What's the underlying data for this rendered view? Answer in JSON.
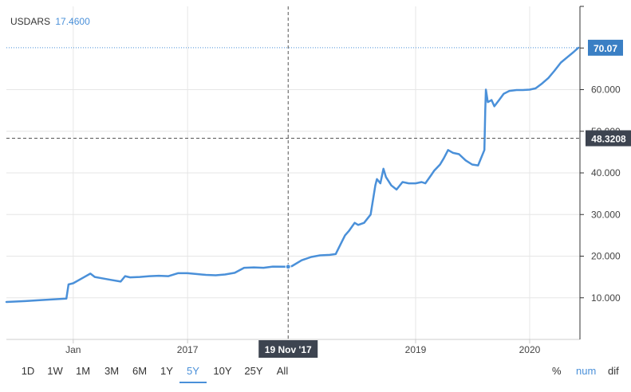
{
  "header": {
    "symbol": "USDARS",
    "hover_value": "17.4600"
  },
  "ranges": [
    {
      "label": "1D"
    },
    {
      "label": "1W"
    },
    {
      "label": "1M"
    },
    {
      "label": "3M"
    },
    {
      "label": "6M"
    },
    {
      "label": "1Y"
    },
    {
      "label": "5Y",
      "active": true
    },
    {
      "label": "10Y"
    },
    {
      "label": "25Y"
    },
    {
      "label": "All"
    }
  ],
  "modes": [
    {
      "label": "%"
    },
    {
      "label": "num",
      "active": true
    },
    {
      "label": "dif"
    }
  ],
  "crosshair": {
    "date_label": "19 Nov '17",
    "price_label": "48.3208"
  },
  "last_price_label": "70.07",
  "colors": {
    "line": "#4a90d9",
    "accent": "#4a90d9",
    "badge_dark": "#3d4450",
    "badge_blue": "#3a7fc4"
  },
  "chart_data": {
    "type": "line",
    "title": "USDARS",
    "xlim": [
      "2015-06-01",
      "2020-06-10"
    ],
    "ylim": [
      0,
      80
    ],
    "x_tick_labels": [
      {
        "date": "2016-01-01",
        "label": "Jan"
      },
      {
        "date": "2017-01-01",
        "label": "2017"
      },
      {
        "date": "2019-01-01",
        "label": "2019"
      },
      {
        "date": "2020-01-01",
        "label": "2020"
      }
    ],
    "y_ticks": [
      10,
      20,
      30,
      40,
      50,
      60
    ],
    "y_tick_labels": [
      "10.000",
      "20.000",
      "30.000",
      "40.000",
      "50.000",
      "60.000"
    ],
    "last_value": 70.07,
    "crosshair_y": 48.3208,
    "crosshair_x": "2017-11-19",
    "series": [
      {
        "points": [
          [
            "2015-06-01",
            9.0
          ],
          [
            "2015-08-01",
            9.2
          ],
          [
            "2015-10-01",
            9.5
          ],
          [
            "2015-12-10",
            9.8
          ],
          [
            "2015-12-17",
            13.2
          ],
          [
            "2016-01-01",
            13.5
          ],
          [
            "2016-02-01",
            14.8
          ],
          [
            "2016-02-25",
            15.8
          ],
          [
            "2016-03-10",
            15.0
          ],
          [
            "2016-04-01",
            14.7
          ],
          [
            "2016-05-01",
            14.3
          ],
          [
            "2016-06-01",
            13.9
          ],
          [
            "2016-06-15",
            15.2
          ],
          [
            "2016-07-01",
            14.9
          ],
          [
            "2016-08-01",
            15.0
          ],
          [
            "2016-09-01",
            15.2
          ],
          [
            "2016-10-01",
            15.3
          ],
          [
            "2016-11-01",
            15.2
          ],
          [
            "2016-12-01",
            15.9
          ],
          [
            "2017-01-01",
            15.9
          ],
          [
            "2017-02-01",
            15.7
          ],
          [
            "2017-03-01",
            15.5
          ],
          [
            "2017-04-01",
            15.4
          ],
          [
            "2017-05-01",
            15.6
          ],
          [
            "2017-06-01",
            16.0
          ],
          [
            "2017-07-01",
            17.2
          ],
          [
            "2017-08-01",
            17.3
          ],
          [
            "2017-09-01",
            17.2
          ],
          [
            "2017-10-01",
            17.5
          ],
          [
            "2017-11-19",
            17.46
          ],
          [
            "2017-12-01",
            17.6
          ],
          [
            "2018-01-01",
            19.0
          ],
          [
            "2018-02-01",
            19.8
          ],
          [
            "2018-03-01",
            20.2
          ],
          [
            "2018-04-01",
            20.3
          ],
          [
            "2018-04-20",
            20.5
          ],
          [
            "2018-05-10",
            23.5
          ],
          [
            "2018-05-20",
            25.0
          ],
          [
            "2018-06-01",
            26.0
          ],
          [
            "2018-06-20",
            28.0
          ],
          [
            "2018-07-01",
            27.5
          ],
          [
            "2018-07-20",
            28.0
          ],
          [
            "2018-08-10",
            30.0
          ],
          [
            "2018-08-25",
            37.0
          ],
          [
            "2018-08-30",
            38.5
          ],
          [
            "2018-09-10",
            37.5
          ],
          [
            "2018-09-20",
            41.0
          ],
          [
            "2018-09-28",
            39.0
          ],
          [
            "2018-10-15",
            37.0
          ],
          [
            "2018-11-01",
            36.0
          ],
          [
            "2018-11-20",
            37.8
          ],
          [
            "2018-12-10",
            37.5
          ],
          [
            "2019-01-01",
            37.5
          ],
          [
            "2019-01-20",
            37.8
          ],
          [
            "2019-02-01",
            37.5
          ],
          [
            "2019-02-20",
            39.5
          ],
          [
            "2019-03-01",
            40.5
          ],
          [
            "2019-03-20",
            42.0
          ],
          [
            "2019-04-01",
            43.5
          ],
          [
            "2019-04-15",
            45.5
          ],
          [
            "2019-05-01",
            44.8
          ],
          [
            "2019-05-20",
            44.5
          ],
          [
            "2019-06-10",
            43.0
          ],
          [
            "2019-07-01",
            42.0
          ],
          [
            "2019-07-20",
            41.8
          ],
          [
            "2019-08-09",
            45.5
          ],
          [
            "2019-08-12",
            55.0
          ],
          [
            "2019-08-14",
            60.0
          ],
          [
            "2019-08-20",
            57.0
          ],
          [
            "2019-09-01",
            57.5
          ],
          [
            "2019-09-10",
            56.0
          ],
          [
            "2019-09-25",
            57.5
          ],
          [
            "2019-10-10",
            59.0
          ],
          [
            "2019-10-28",
            59.7
          ],
          [
            "2019-11-20",
            59.9
          ],
          [
            "2019-12-10",
            59.9
          ],
          [
            "2020-01-01",
            60.0
          ],
          [
            "2020-01-20",
            60.3
          ],
          [
            "2020-02-10",
            61.5
          ],
          [
            "2020-03-01",
            62.8
          ],
          [
            "2020-03-20",
            64.5
          ],
          [
            "2020-04-10",
            66.5
          ],
          [
            "2020-05-01",
            67.8
          ],
          [
            "2020-05-20",
            69.0
          ],
          [
            "2020-06-05",
            70.07
          ]
        ]
      }
    ]
  }
}
